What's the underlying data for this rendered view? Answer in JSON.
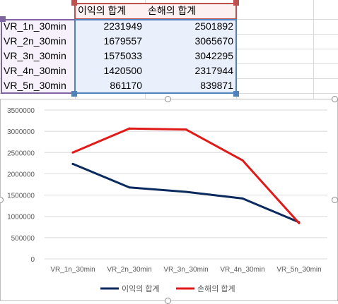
{
  "sheet": {
    "headers": [
      "이익의 합계",
      "손해의 합계"
    ],
    "rows": [
      {
        "label": "VR_1n_30min",
        "profit": "2231949",
        "loss": "2501892"
      },
      {
        "label": "VR_2n_30min",
        "profit": "1679557",
        "loss": "3065670"
      },
      {
        "label": "VR_3n_30min",
        "profit": "1575033",
        "loss": "3042295"
      },
      {
        "label": "VR_4n_30min",
        "profit": "1420500",
        "loss": "2317944"
      },
      {
        "label": "VR_5n_30min",
        "profit": "861170",
        "loss": "839871"
      }
    ],
    "colors": {
      "header_outline": "#c0504d",
      "label_outline": "#8064a2",
      "value_outline": "#4f81bd"
    }
  },
  "chart_data": {
    "type": "line",
    "categories": [
      "VR_1n_30min",
      "VR_2n_30min",
      "VR_3n_30min",
      "VR_4n_30min",
      "VR_5n_30min"
    ],
    "series": [
      {
        "name": "이익의 합계",
        "values": [
          2231949,
          1679557,
          1575033,
          1420500,
          861170
        ],
        "color": "#0b2a5e"
      },
      {
        "name": "손해의 합계",
        "values": [
          2501892,
          3065670,
          3042295,
          2317944,
          839871
        ],
        "color": "#e01919"
      }
    ],
    "yticks": [
      "0",
      "500000",
      "1000000",
      "1500000",
      "2000000",
      "2500000",
      "3000000",
      "3500000"
    ],
    "ylim": [
      0,
      3500000
    ],
    "grid": true,
    "legend_position": "bottom"
  }
}
